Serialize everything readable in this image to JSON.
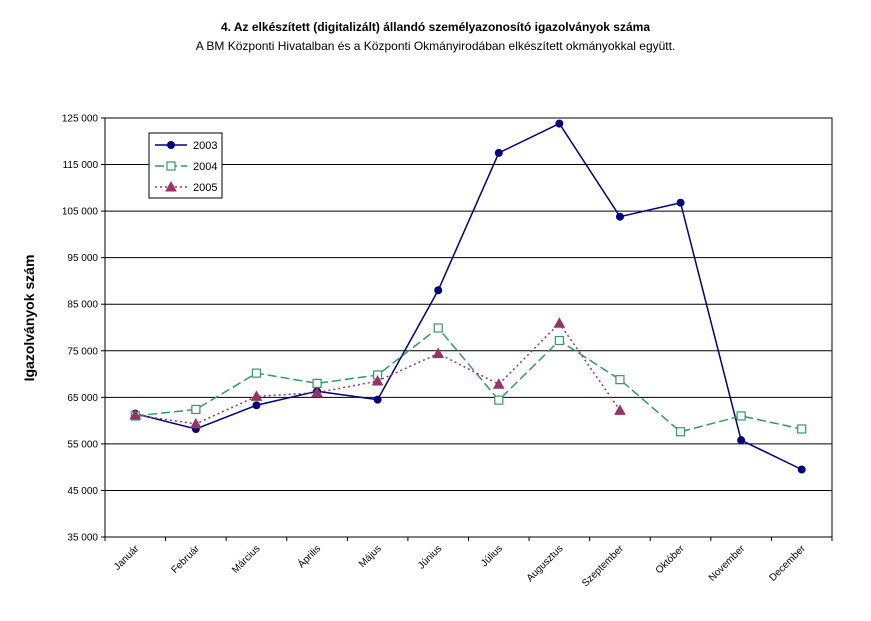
{
  "chart_data": {
    "type": "line",
    "title": "4. Az elkészített (digitalizált) állandó személyazonosító igazolványok száma",
    "subtitle": "A BM Központi Hivatalban és a Központi Okmányirodában elkészített okmányokkal együtt.",
    "ylabel": "Igazolványok szám",
    "xlabel": "",
    "ylim": [
      35000,
      125000
    ],
    "yticks": [
      "35 000",
      "45 000",
      "55 000",
      "65 000",
      "75 000",
      "85 000",
      "95 000",
      "105 000",
      "115 000",
      "125 000"
    ],
    "categories": [
      "Január",
      "Február",
      "Március",
      "Április",
      "Május",
      "Június",
      "Július",
      "Augusztus",
      "Szeptember",
      "Október",
      "November",
      "December"
    ],
    "grid": "horizontal",
    "legend_position": "top-left",
    "series": [
      {
        "name": "2003",
        "color": "#000080",
        "dash": "solid",
        "marker": "filled-circle",
        "values": [
          61500,
          58200,
          63300,
          66300,
          64500,
          88000,
          117500,
          123800,
          103800,
          106800,
          55800,
          49500
        ]
      },
      {
        "name": "2004",
        "color": "#339966",
        "dash": "long-dash",
        "marker": "open-square",
        "values": [
          61000,
          62400,
          70200,
          68000,
          69800,
          79900,
          64400,
          77200,
          68800,
          57600,
          61000,
          58200
        ]
      },
      {
        "name": "2005",
        "color": "#993366",
        "dash": "dotted",
        "marker": "filled-triangle",
        "values": [
          61200,
          59300,
          65200,
          66000,
          68500,
          74400,
          67800,
          80900,
          62200,
          null,
          null,
          null
        ]
      }
    ]
  }
}
